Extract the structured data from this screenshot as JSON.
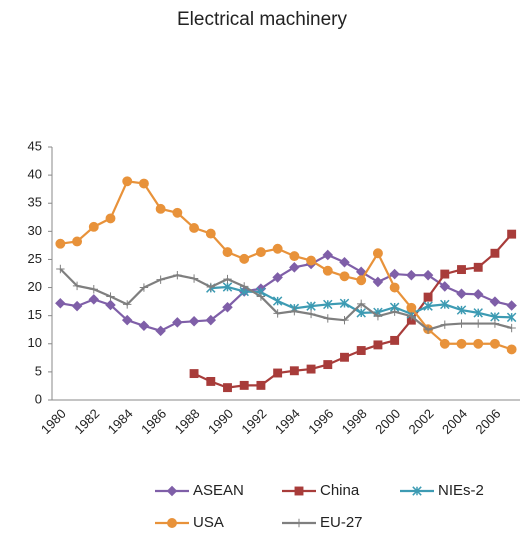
{
  "chart_data": {
    "type": "line",
    "title": "Electrical machinery",
    "categories": [
      1980,
      null,
      1982,
      null,
      1984,
      null,
      1986,
      null,
      1988,
      null,
      1990,
      null,
      1992,
      null,
      1994,
      null,
      1996,
      null,
      1998,
      null,
      2000,
      null,
      2002,
      null,
      2004,
      null,
      2006,
      null
    ],
    "ylim": [
      0,
      45
    ],
    "yticks": [
      0,
      5,
      10,
      15,
      20,
      25,
      30,
      35,
      40,
      45
    ],
    "grid": false,
    "legend": "bottom",
    "series": [
      {
        "name": "ASEAN",
        "color": "#7f5fa8",
        "marker": "diamond",
        "values": [
          17.2,
          16.7,
          17.9,
          16.9,
          14.2,
          13.2,
          12.3,
          13.8,
          14.0,
          14.2,
          16.5,
          19.3,
          19.8,
          21.8,
          23.6,
          24.2,
          25.8,
          24.5,
          22.8,
          21.0,
          22.4,
          22.2,
          22.2,
          20.2,
          18.9,
          18.8,
          17.5,
          16.8
        ]
      },
      {
        "name": "China",
        "color": "#a83c3a",
        "marker": "square",
        "values": [
          null,
          null,
          null,
          null,
          null,
          null,
          null,
          null,
          4.7,
          3.3,
          2.2,
          2.6,
          2.6,
          4.8,
          5.2,
          5.5,
          6.3,
          7.6,
          8.8,
          9.8,
          10.6,
          14.2,
          18.3,
          22.4,
          23.2,
          23.6,
          26.1,
          29.5
        ]
      },
      {
        "name": "NIEs-2",
        "color": "#3d9bb3",
        "marker": "asterisk",
        "values": [
          null,
          null,
          null,
          null,
          null,
          null,
          null,
          null,
          null,
          19.9,
          20.1,
          19.3,
          19.2,
          17.6,
          16.3,
          16.7,
          17.0,
          17.2,
          15.5,
          15.6,
          16.5,
          15.3,
          16.7,
          17.0,
          16.0,
          15.5,
          14.8,
          14.7
        ]
      },
      {
        "name": "USA",
        "color": "#e8923a",
        "marker": "circle",
        "values": [
          27.8,
          28.2,
          30.8,
          32.3,
          38.9,
          38.5,
          34.0,
          33.3,
          30.6,
          29.6,
          26.3,
          25.1,
          26.3,
          26.9,
          25.6,
          24.8,
          23.0,
          22.0,
          21.3,
          26.1,
          20.0,
          16.4,
          12.6,
          10.0,
          10.0,
          10.0,
          10.0,
          9.0
        ]
      },
      {
        "name": "EU-27",
        "color": "#7f7f7f",
        "marker": "plus",
        "values": [
          23.3,
          20.3,
          19.7,
          18.4,
          17.0,
          20.0,
          21.4,
          22.2,
          21.6,
          20.1,
          21.5,
          20.2,
          18.4,
          15.4,
          15.8,
          15.3,
          14.5,
          14.2,
          17.1,
          14.9,
          15.7,
          14.9,
          12.5,
          13.4,
          13.6,
          13.6,
          13.6,
          12.8
        ]
      }
    ]
  }
}
